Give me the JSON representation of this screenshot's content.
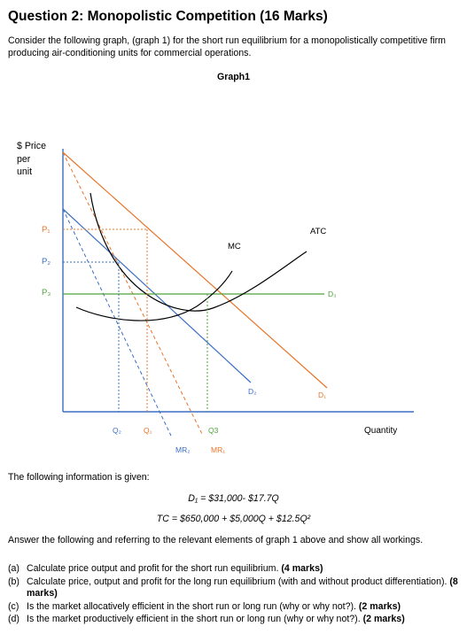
{
  "question_title": "Question 2: Monopolistic Competition (16 Marks)",
  "intro": "Consider the following graph, (graph 1) for the short run equilibrium for a monopolistically competitive firm producing air-conditioning units for commercial operations.",
  "graph": {
    "title": "Graph1",
    "y_axis_label_line1": "$ Price",
    "y_axis_label_line2": "per",
    "y_axis_label_line3": "unit",
    "x_axis_label": "Quantity",
    "price_labels": {
      "p1": "P₁",
      "p2": "P₂",
      "p3": "P₃"
    },
    "quantity_labels": {
      "q2": "Q₂",
      "q1": "Q₁",
      "q3": "Q3"
    },
    "curve_labels": {
      "mc": "MC",
      "atc": "ATC",
      "d1": "D₁",
      "d2": "D₂",
      "d3": "D₃",
      "mr1": "MR₁",
      "mr2": "MR₂"
    },
    "colors": {
      "blue": "#3a6fc2",
      "orange": "#e8742a",
      "green": "#4fa23a",
      "axis": "#3a6fc2",
      "curve": "#000000"
    }
  },
  "given_heading": "The following information is given:",
  "equation_demand": "D₁ = $31,000- $17.7Q",
  "equation_cost": "TC = $650,000 + $5,000Q + $12.5Q²",
  "instruction": "Answer the following and referring to the relevant elements of graph 1 above and show all workings.",
  "questions": [
    {
      "letter": "(a)",
      "text": "Calculate price output and profit for the short run equilibrium.",
      "marks": "(4 marks)"
    },
    {
      "letter": "(b)",
      "text": "Calculate price, output and profit for the long run equilibrium (with and without product differentiation).",
      "marks": "(8 marks)"
    },
    {
      "letter": "(c)",
      "text": "Is the market allocatively efficient in the short run or long run (why or why not?).",
      "marks": "(2 marks)"
    },
    {
      "letter": "(d)",
      "text": "Is the market productively efficient in the short run or long run (why or why not?).",
      "marks": "(2 marks)"
    }
  ]
}
